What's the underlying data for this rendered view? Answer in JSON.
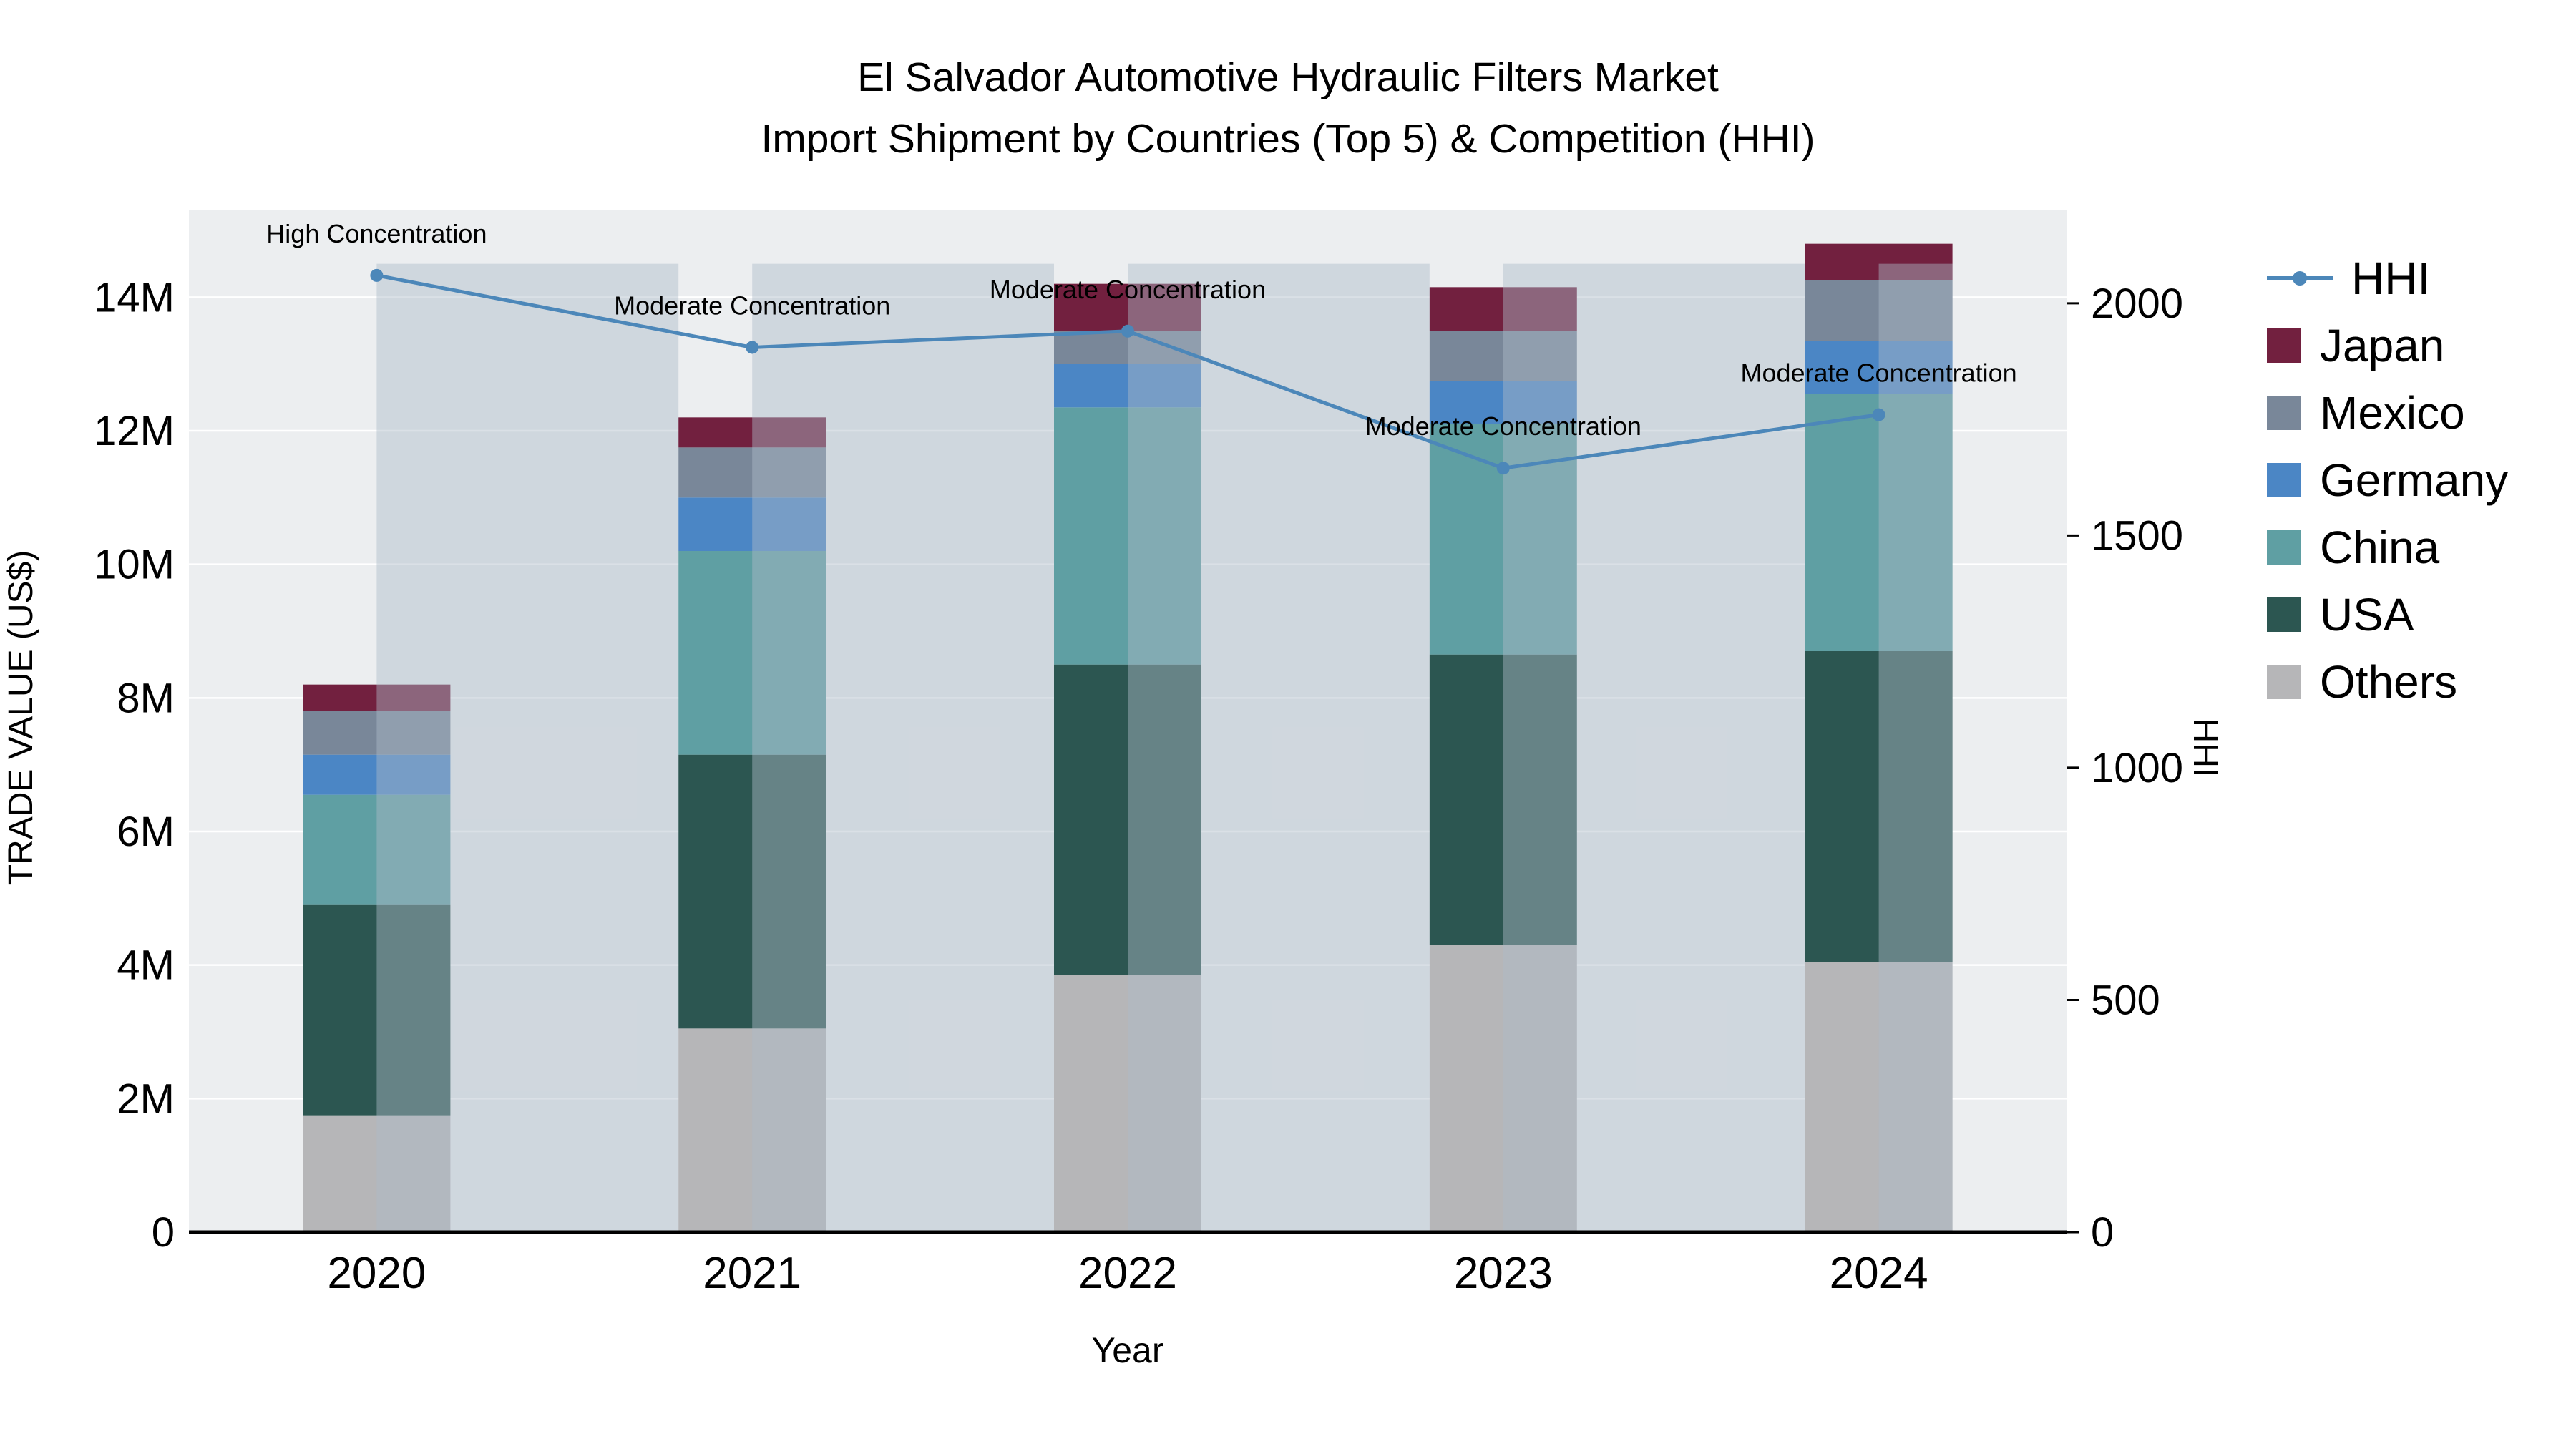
{
  "title": {
    "line1": "El Salvador Automotive Hydraulic Filters Market",
    "line2": "Import Shipment by Countries (Top 5) & Competition (HHI)"
  },
  "chart_data": {
    "type": "bar",
    "title_lines": [
      "El Salvador Automotive Hydraulic Filters Market",
      "Import Shipment by Countries (Top 5) & Competition (HHI)"
    ],
    "categories": [
      "2020",
      "2021",
      "2022",
      "2023",
      "2024"
    ],
    "series": [
      {
        "name": "Others",
        "color": "#b6b6b8",
        "values": [
          1750000,
          3050000,
          3850000,
          4300000,
          4050000
        ]
      },
      {
        "name": "USA",
        "color": "#2c5651",
        "values": [
          3150000,
          4100000,
          4650000,
          4350000,
          4650000
        ]
      },
      {
        "name": "China",
        "color": "#5f9fa3",
        "values": [
          1650000,
          3050000,
          3850000,
          3450000,
          3850000
        ]
      },
      {
        "name": "Germany",
        "color": "#4b86c5",
        "values": [
          600000,
          800000,
          650000,
          650000,
          800000
        ]
      },
      {
        "name": "Mexico",
        "color": "#798799",
        "values": [
          650000,
          750000,
          500000,
          750000,
          900000
        ]
      },
      {
        "name": "Japan",
        "color": "#72203f",
        "values": [
          400000,
          450000,
          700000,
          650000,
          550000
        ]
      }
    ],
    "line": {
      "name": "HHI",
      "color": "#4c87b9",
      "values": [
        2060,
        1905,
        1940,
        1645,
        1760
      ],
      "axis": "y2"
    },
    "annotations": [
      {
        "x": "2020",
        "text": "High Concentration"
      },
      {
        "x": "2021",
        "text": "Moderate Concentration"
      },
      {
        "x": "2022",
        "text": "Moderate Concentration"
      },
      {
        "x": "2023",
        "text": "Moderate Concentration"
      },
      {
        "x": "2024",
        "text": "Moderate Concentration"
      }
    ],
    "xlabel": "Year",
    "ylabel": "TRADE VALUE (US$)",
    "y2label": "HHI",
    "ylim": [
      0,
      15300000
    ],
    "y2lim": [
      0,
      2200
    ],
    "yticks": {
      "values": [
        0,
        2000000,
        4000000,
        6000000,
        8000000,
        10000000,
        12000000,
        14000000
      ],
      "labels": [
        "0",
        "2M",
        "4M",
        "6M",
        "8M",
        "10M",
        "12M",
        "14M"
      ]
    },
    "y2ticks": {
      "values": [
        0,
        500,
        1000,
        1500,
        2000
      ],
      "labels": [
        "0",
        "500",
        "1000",
        "1500",
        "2000"
      ]
    },
    "legend": [
      "HHI",
      "Japan",
      "Mexico",
      "Germany",
      "China",
      "USA",
      "Others"
    ],
    "legend_position": "right",
    "grid": true,
    "plot_bg": "#eceef0",
    "grid_color": "#ffffff",
    "band_color": "#aebac7",
    "band_top": 14500000,
    "axis_line_color": "#000000"
  }
}
